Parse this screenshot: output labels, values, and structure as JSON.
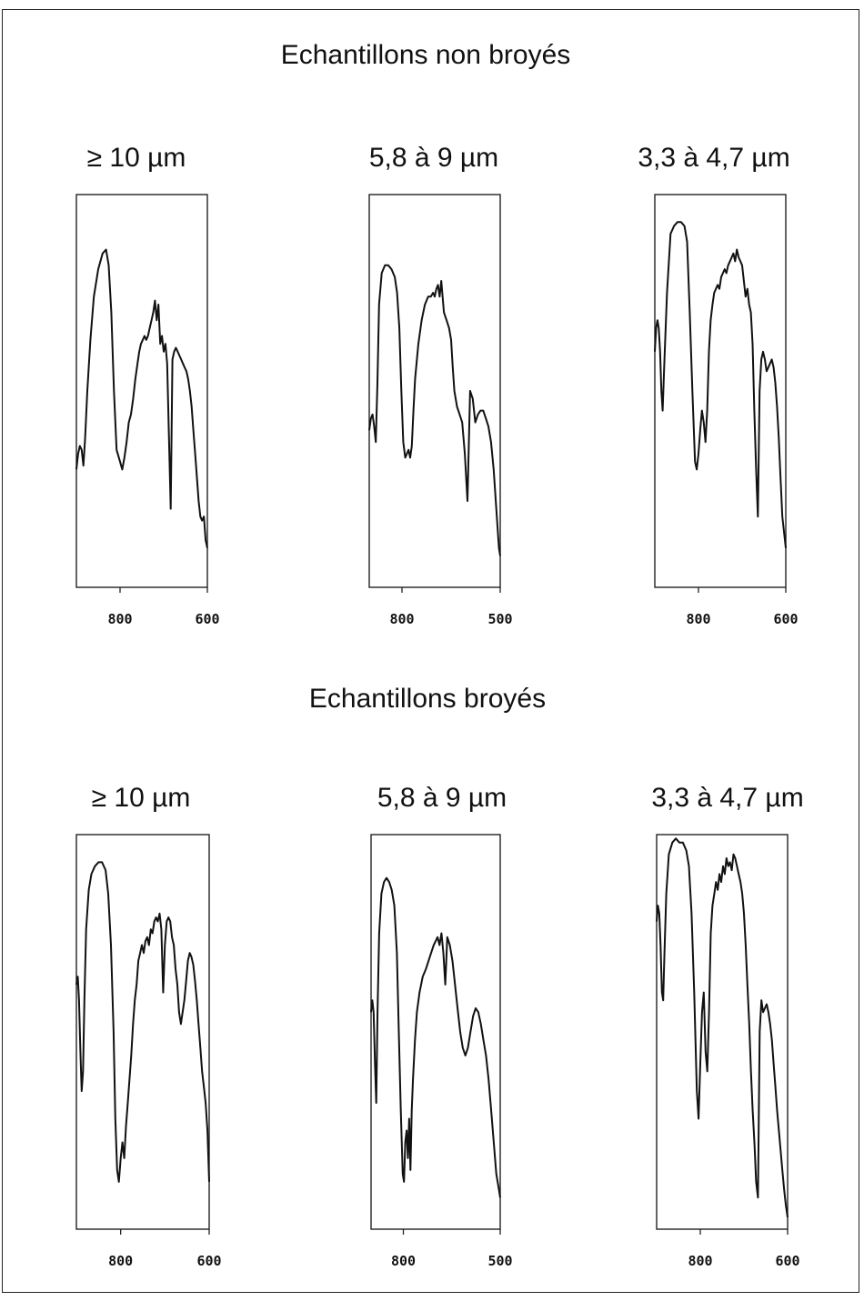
{
  "chart_data": [
    {
      "type": "line",
      "group": "Echantillons non broyés",
      "title": "≥ 10 µm",
      "x_ticks": [
        800,
        600
      ],
      "xlim": [
        900,
        600
      ],
      "series": [
        {
          "x": [
            900,
            896,
            892,
            888,
            884,
            880,
            875,
            868,
            860,
            850,
            840,
            832,
            826,
            820,
            814,
            808,
            800,
            795,
            790,
            785,
            780,
            775,
            770,
            765,
            760,
            756,
            752,
            748,
            744,
            740,
            736,
            732,
            728,
            724,
            720,
            716,
            712,
            708,
            704,
            700,
            696,
            692,
            688,
            684,
            680,
            676,
            672,
            668,
            664,
            660,
            656,
            652,
            648,
            644,
            640,
            636,
            632,
            628,
            624,
            620,
            616,
            612,
            608,
            604,
            600
          ],
          "y": [
            0.3,
            0.34,
            0.36,
            0.35,
            0.31,
            0.38,
            0.5,
            0.63,
            0.74,
            0.81,
            0.85,
            0.86,
            0.82,
            0.7,
            0.5,
            0.35,
            0.32,
            0.3,
            0.33,
            0.37,
            0.42,
            0.44,
            0.48,
            0.53,
            0.57,
            0.6,
            0.62,
            0.63,
            0.64,
            0.63,
            0.64,
            0.66,
            0.68,
            0.7,
            0.73,
            0.68,
            0.72,
            0.62,
            0.64,
            0.6,
            0.62,
            0.57,
            0.38,
            0.2,
            0.58,
            0.6,
            0.61,
            0.6,
            0.59,
            0.58,
            0.57,
            0.56,
            0.55,
            0.53,
            0.5,
            0.46,
            0.4,
            0.34,
            0.28,
            0.22,
            0.18,
            0.17,
            0.18,
            0.12,
            0.1
          ]
        }
      ]
    },
    {
      "type": "line",
      "group": "Echantillons non broyés",
      "title": "5,8 à 9 µm",
      "x_ticks": [
        800,
        500
      ],
      "xlim": [
        900,
        500
      ],
      "series": [
        {
          "x": [
            900,
            895,
            890,
            885,
            880,
            875,
            870,
            862,
            852,
            842,
            832,
            822,
            815,
            808,
            802,
            796,
            790,
            785,
            780,
            775,
            770,
            765,
            760,
            750,
            740,
            730,
            720,
            712,
            705,
            700,
            695,
            690,
            685,
            680,
            672,
            664,
            656,
            650,
            645,
            640,
            632,
            624,
            616,
            608,
            600,
            592,
            584,
            576,
            568,
            560,
            552,
            544,
            536,
            528,
            520,
            512,
            504,
            500
          ],
          "y": [
            0.4,
            0.43,
            0.44,
            0.41,
            0.37,
            0.52,
            0.72,
            0.8,
            0.82,
            0.82,
            0.81,
            0.79,
            0.75,
            0.66,
            0.5,
            0.37,
            0.33,
            0.34,
            0.35,
            0.33,
            0.36,
            0.45,
            0.53,
            0.62,
            0.68,
            0.72,
            0.74,
            0.74,
            0.75,
            0.74,
            0.76,
            0.77,
            0.74,
            0.78,
            0.7,
            0.68,
            0.66,
            0.63,
            0.56,
            0.5,
            0.46,
            0.44,
            0.42,
            0.34,
            0.22,
            0.5,
            0.48,
            0.42,
            0.44,
            0.45,
            0.45,
            0.43,
            0.41,
            0.37,
            0.3,
            0.2,
            0.1,
            0.08
          ]
        }
      ]
    },
    {
      "type": "line",
      "group": "Echantillons non broyés",
      "title": "3,3 à 4,7 µm",
      "x_ticks": [
        800,
        600
      ],
      "xlim": [
        900,
        600
      ],
      "series": [
        {
          "x": [
            900,
            897,
            894,
            891,
            888,
            885,
            882,
            878,
            872,
            864,
            856,
            848,
            840,
            832,
            826,
            820,
            814,
            808,
            804,
            800,
            796,
            792,
            788,
            784,
            780,
            776,
            772,
            768,
            764,
            760,
            756,
            752,
            748,
            744,
            740,
            736,
            732,
            728,
            724,
            720,
            716,
            712,
            708,
            704,
            700,
            696,
            692,
            688,
            684,
            680,
            676,
            672,
            668,
            664,
            660,
            656,
            652,
            648,
            644,
            640,
            636,
            632,
            628,
            624,
            620,
            616,
            612,
            608,
            604,
            600
          ],
          "y": [
            0.6,
            0.66,
            0.68,
            0.66,
            0.6,
            0.5,
            0.45,
            0.58,
            0.75,
            0.9,
            0.92,
            0.93,
            0.93,
            0.92,
            0.88,
            0.7,
            0.5,
            0.32,
            0.3,
            0.34,
            0.4,
            0.45,
            0.42,
            0.37,
            0.45,
            0.6,
            0.68,
            0.72,
            0.75,
            0.76,
            0.77,
            0.76,
            0.79,
            0.8,
            0.81,
            0.8,
            0.82,
            0.83,
            0.84,
            0.85,
            0.83,
            0.86,
            0.84,
            0.83,
            0.82,
            0.78,
            0.74,
            0.76,
            0.72,
            0.7,
            0.62,
            0.45,
            0.3,
            0.18,
            0.5,
            0.58,
            0.6,
            0.58,
            0.55,
            0.56,
            0.57,
            0.58,
            0.56,
            0.52,
            0.46,
            0.38,
            0.28,
            0.18,
            0.14,
            0.1
          ]
        }
      ]
    },
    {
      "type": "line",
      "group": "Echantillons broyés",
      "title": "≥ 10 µm",
      "x_ticks": [
        800,
        600
      ],
      "xlim": [
        900,
        600
      ],
      "series": [
        {
          "x": [
            900,
            897,
            894,
            891,
            888,
            885,
            882,
            878,
            872,
            866,
            858,
            850,
            842,
            834,
            828,
            822,
            816,
            812,
            808,
            804,
            800,
            796,
            792,
            788,
            784,
            780,
            776,
            772,
            768,
            764,
            760,
            756,
            752,
            748,
            744,
            740,
            736,
            732,
            728,
            724,
            720,
            716,
            712,
            708,
            704,
            700,
            696,
            692,
            688,
            684,
            680,
            676,
            672,
            668,
            664,
            660,
            656,
            652,
            648,
            644,
            640,
            636,
            632,
            628,
            624,
            620,
            616,
            612,
            608,
            604,
            600
          ],
          "y": [
            0.62,
            0.64,
            0.58,
            0.45,
            0.35,
            0.4,
            0.58,
            0.76,
            0.86,
            0.9,
            0.92,
            0.93,
            0.93,
            0.91,
            0.85,
            0.72,
            0.5,
            0.28,
            0.15,
            0.12,
            0.18,
            0.22,
            0.18,
            0.26,
            0.32,
            0.38,
            0.44,
            0.52,
            0.58,
            0.62,
            0.68,
            0.7,
            0.72,
            0.7,
            0.73,
            0.74,
            0.72,
            0.76,
            0.75,
            0.78,
            0.79,
            0.78,
            0.8,
            0.76,
            0.6,
            0.72,
            0.78,
            0.79,
            0.78,
            0.74,
            0.72,
            0.66,
            0.62,
            0.55,
            0.52,
            0.55,
            0.58,
            0.63,
            0.68,
            0.7,
            0.69,
            0.67,
            0.63,
            0.58,
            0.52,
            0.46,
            0.4,
            0.36,
            0.32,
            0.25,
            0.12
          ]
        }
      ]
    },
    {
      "type": "line",
      "group": "Echantillons broyés",
      "title": "5,8 à 9 µm",
      "x_ticks": [
        800,
        500
      ],
      "xlim": [
        900,
        500
      ],
      "series": [
        {
          "x": [
            900,
            896,
            892,
            888,
            884,
            880,
            875,
            868,
            860,
            852,
            844,
            836,
            828,
            820,
            814,
            808,
            802,
            798,
            794,
            790,
            786,
            782,
            778,
            774,
            770,
            764,
            758,
            750,
            740,
            730,
            722,
            714,
            706,
            700,
            694,
            688,
            682,
            676,
            670,
            664,
            656,
            648,
            640,
            632,
            624,
            616,
            608,
            600,
            592,
            584,
            576,
            568,
            560,
            552,
            544,
            536,
            528,
            520,
            512,
            504,
            500
          ],
          "y": [
            0.55,
            0.58,
            0.55,
            0.42,
            0.32,
            0.55,
            0.75,
            0.85,
            0.88,
            0.89,
            0.88,
            0.86,
            0.82,
            0.7,
            0.5,
            0.3,
            0.14,
            0.12,
            0.22,
            0.25,
            0.18,
            0.28,
            0.15,
            0.3,
            0.38,
            0.48,
            0.55,
            0.6,
            0.64,
            0.66,
            0.68,
            0.7,
            0.72,
            0.73,
            0.74,
            0.72,
            0.75,
            0.7,
            0.62,
            0.74,
            0.72,
            0.68,
            0.62,
            0.56,
            0.5,
            0.46,
            0.44,
            0.46,
            0.5,
            0.54,
            0.56,
            0.55,
            0.52,
            0.48,
            0.44,
            0.38,
            0.3,
            0.22,
            0.14,
            0.1,
            0.08
          ]
        }
      ]
    },
    {
      "type": "line",
      "group": "Echantillons broyés",
      "title": "3,3 à 4,7 µm",
      "x_ticks": [
        800,
        600
      ],
      "xlim": [
        900,
        600
      ],
      "series": [
        {
          "x": [
            900,
            897,
            894,
            891,
            888,
            885,
            882,
            878,
            872,
            864,
            856,
            848,
            840,
            832,
            826,
            820,
            814,
            808,
            804,
            800,
            796,
            792,
            788,
            784,
            780,
            776,
            772,
            768,
            764,
            760,
            756,
            752,
            748,
            744,
            740,
            736,
            732,
            728,
            724,
            720,
            716,
            712,
            708,
            704,
            700,
            696,
            692,
            688,
            684,
            680,
            676,
            672,
            668,
            664,
            660,
            656,
            652,
            648,
            644,
            640,
            636,
            632,
            628,
            624,
            620,
            616,
            612,
            608,
            604,
            600
          ],
          "y": [
            0.78,
            0.82,
            0.8,
            0.72,
            0.6,
            0.58,
            0.7,
            0.85,
            0.95,
            0.98,
            0.99,
            0.98,
            0.98,
            0.96,
            0.92,
            0.8,
            0.6,
            0.35,
            0.28,
            0.42,
            0.55,
            0.6,
            0.45,
            0.4,
            0.55,
            0.75,
            0.82,
            0.85,
            0.88,
            0.86,
            0.9,
            0.88,
            0.92,
            0.9,
            0.94,
            0.92,
            0.93,
            0.91,
            0.95,
            0.94,
            0.92,
            0.9,
            0.88,
            0.85,
            0.8,
            0.72,
            0.62,
            0.52,
            0.4,
            0.3,
            0.22,
            0.12,
            0.08,
            0.5,
            0.58,
            0.55,
            0.56,
            0.57,
            0.55,
            0.52,
            0.48,
            0.42,
            0.36,
            0.3,
            0.25,
            0.2,
            0.15,
            0.1,
            0.06,
            0.03
          ]
        }
      ]
    }
  ]
}
